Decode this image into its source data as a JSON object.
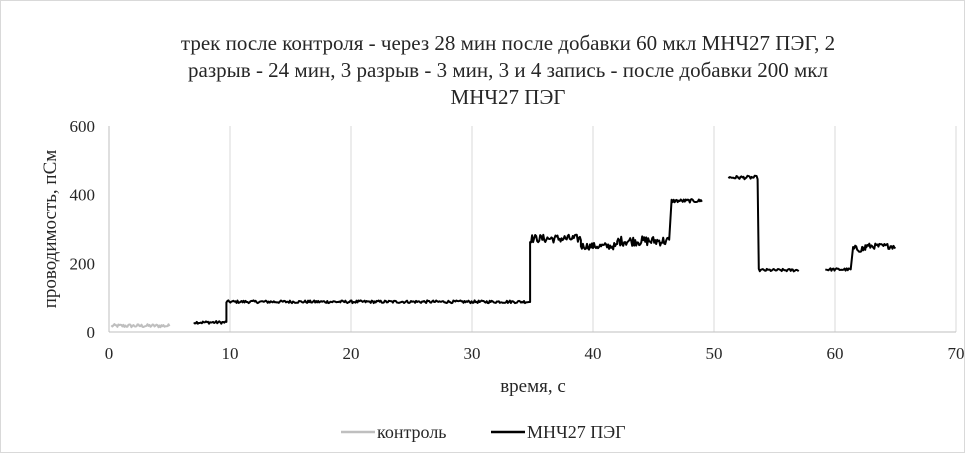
{
  "chart_data": {
    "type": "line",
    "title_lines": [
      "трек после контроля - через 28 мин после добавки 60 мкл МНЧ27 ПЭГ, 2",
      "разрыв - 24 мин, 3 разрыв - 3 мин, 3 и 4 запись - после добавки 200 мкл",
      "МНЧ27 ПЭГ"
    ],
    "xlabel": "время, с",
    "ylabel": "проводимость, пСм",
    "xlim": [
      0,
      70
    ],
    "ylim": [
      0,
      600
    ],
    "x_ticks": [
      0,
      10,
      20,
      30,
      40,
      50,
      60,
      70
    ],
    "y_ticks": [
      0,
      200,
      400,
      600
    ],
    "grid": "vertical",
    "legend_position": "bottom",
    "series": [
      {
        "name": "контроль",
        "color": "#bfbfbf",
        "segments": [
          {
            "x_start": 0.2,
            "x_end": 5.0,
            "level": 18,
            "noise": 5
          }
        ]
      },
      {
        "name": "МНЧ27 ПЭГ",
        "color": "#000000",
        "segments": [
          {
            "x_start": 7.0,
            "x_end": 9.7,
            "level": 28,
            "noise": 4
          },
          {
            "x_start": 9.7,
            "x_end": 34.8,
            "level": 88,
            "noise": 4
          },
          {
            "x_start": 34.8,
            "x_end": 39.0,
            "level": 272,
            "noise": 12
          },
          {
            "x_start": 39.0,
            "x_end": 42.0,
            "level": 250,
            "noise": 10
          },
          {
            "x_start": 42.0,
            "x_end": 46.3,
            "level": 265,
            "noise": 14
          },
          {
            "x_start": 46.5,
            "x_end": 49.0,
            "level": 382,
            "noise": 5
          },
          {
            "x_start": 51.2,
            "x_end": 53.6,
            "level": 450,
            "noise": 5
          },
          {
            "x_start": 53.7,
            "x_end": 57.0,
            "level": 180,
            "noise": 4
          },
          {
            "x_start": 59.2,
            "x_end": 61.3,
            "level": 182,
            "noise": 4
          },
          {
            "x_start": 61.5,
            "x_end": 62.5,
            "level": 242,
            "noise": 10
          },
          {
            "x_start": 62.5,
            "x_end": 65.0,
            "level": 250,
            "noise": 8
          }
        ]
      }
    ]
  }
}
